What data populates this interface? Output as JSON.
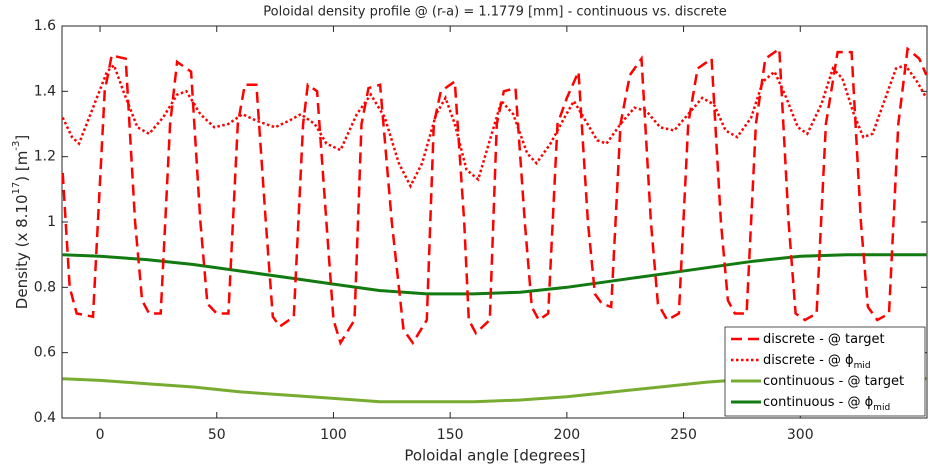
{
  "chart_data": {
    "type": "line",
    "title": "Poloidal density profile @ (r-a) = 1.1779 [mm] - continuous vs. discrete",
    "xlabel": "Poloidal angle [degrees]",
    "ylabel": [
      "Density (x 8.10",
      "17",
      ") [m",
      "-3",
      "]"
    ],
    "xlim": [
      -16.3,
      354.3
    ],
    "ylim": [
      0.4,
      1.6
    ],
    "xticks": [
      0,
      50,
      100,
      150,
      200,
      250,
      300
    ],
    "yticks": [
      0.4,
      0.6,
      0.8,
      1,
      1.2,
      1.4,
      1.6
    ],
    "grid": false,
    "legend": "lower right",
    "series": [
      {
        "name": "discrete - @ target",
        "color": "#ff0000",
        "dash": "dashed",
        "x": [
          -16,
          -13,
          -10,
          -3,
          2,
          5,
          11,
          15,
          18,
          21,
          26,
          30,
          33,
          39,
          43,
          46,
          50,
          55,
          59,
          62,
          67,
          71,
          74,
          77,
          83,
          87,
          89,
          93,
          97,
          100,
          103,
          109,
          112,
          115,
          120,
          125,
          130,
          134,
          140,
          143,
          146,
          152,
          156,
          158,
          161,
          167,
          170,
          173,
          178,
          182,
          185,
          188,
          192,
          196,
          200,
          205,
          209,
          212,
          215,
          219,
          223,
          227,
          232,
          236,
          239,
          243,
          248,
          252,
          256,
          262,
          266,
          269,
          272,
          277,
          281,
          285,
          291,
          295,
          298,
          302,
          307,
          311,
          316,
          322,
          326,
          329,
          333,
          338,
          342,
          346,
          351,
          354
        ],
        "values": [
          1.15,
          0.8,
          0.72,
          0.71,
          1.4,
          1.51,
          1.5,
          1.0,
          0.76,
          0.72,
          0.72,
          1.3,
          1.49,
          1.46,
          1.0,
          0.75,
          0.72,
          0.72,
          1.3,
          1.42,
          1.42,
          1.0,
          0.71,
          0.68,
          0.71,
          1.3,
          1.42,
          1.4,
          1.0,
          0.7,
          0.63,
          0.7,
          1.3,
          1.41,
          1.42,
          1.0,
          0.67,
          0.63,
          0.7,
          1.3,
          1.4,
          1.43,
          1.0,
          0.7,
          0.66,
          0.7,
          1.3,
          1.4,
          1.41,
          1.0,
          0.74,
          0.7,
          0.72,
          1.3,
          1.38,
          1.46,
          1.0,
          0.78,
          0.75,
          0.74,
          1.3,
          1.45,
          1.5,
          1.0,
          0.75,
          0.7,
          0.72,
          1.3,
          1.47,
          1.5,
          1.0,
          0.76,
          0.72,
          0.72,
          1.3,
          1.5,
          1.53,
          1.0,
          0.72,
          0.7,
          0.72,
          1.3,
          1.52,
          1.52,
          1.0,
          0.74,
          0.7,
          0.72,
          1.3,
          1.53,
          1.5,
          1.45
        ]
      },
      {
        "name": "discrete - @ ϕ",
        "name_sub": "mid",
        "color": "#ff0000",
        "dash": "dotted",
        "x": [
          -16,
          -12,
          -9,
          -3,
          3,
          6,
          10,
          16,
          21,
          27,
          33,
          37,
          43,
          49,
          55,
          61,
          67,
          75,
          81,
          86,
          92,
          97,
          103,
          110,
          116,
          122,
          128,
          133,
          138,
          144,
          148,
          152,
          157,
          162,
          167,
          172,
          177,
          183,
          187,
          193,
          199,
          203,
          208,
          213,
          217,
          223,
          229,
          234,
          240,
          246,
          252,
          258,
          263,
          268,
          273,
          279,
          284,
          289,
          294,
          299,
          303,
          309,
          314,
          318,
          323,
          327,
          331,
          336,
          341,
          345,
          350,
          354
        ],
        "values": [
          1.32,
          1.26,
          1.24,
          1.35,
          1.46,
          1.48,
          1.4,
          1.29,
          1.27,
          1.32,
          1.39,
          1.4,
          1.33,
          1.29,
          1.3,
          1.33,
          1.31,
          1.29,
          1.31,
          1.33,
          1.3,
          1.24,
          1.22,
          1.33,
          1.39,
          1.32,
          1.18,
          1.11,
          1.18,
          1.33,
          1.38,
          1.3,
          1.16,
          1.13,
          1.25,
          1.37,
          1.33,
          1.21,
          1.18,
          1.24,
          1.32,
          1.37,
          1.31,
          1.25,
          1.24,
          1.3,
          1.35,
          1.34,
          1.29,
          1.28,
          1.33,
          1.38,
          1.36,
          1.28,
          1.26,
          1.32,
          1.43,
          1.46,
          1.38,
          1.29,
          1.27,
          1.36,
          1.47,
          1.44,
          1.33,
          1.26,
          1.27,
          1.37,
          1.47,
          1.48,
          1.43,
          1.38
        ]
      },
      {
        "name": "continuous - @ target",
        "color": "#77ac30",
        "dash": "solid",
        "x": [
          -16,
          0,
          20,
          40,
          60,
          80,
          100,
          120,
          140,
          160,
          180,
          200,
          220,
          240,
          260,
          280,
          300,
          320,
          340,
          354
        ],
        "values": [
          0.52,
          0.515,
          0.505,
          0.495,
          0.48,
          0.47,
          0.46,
          0.45,
          0.45,
          0.45,
          0.455,
          0.465,
          0.48,
          0.495,
          0.51,
          0.52,
          0.525,
          0.525,
          0.52,
          0.52
        ]
      },
      {
        "name": "continuous - @ ϕ",
        "name_sub": "mid",
        "color": "#117a11",
        "dash": "solid",
        "x": [
          -16,
          0,
          20,
          40,
          60,
          80,
          100,
          120,
          140,
          160,
          180,
          200,
          220,
          240,
          260,
          280,
          300,
          320,
          340,
          354
        ],
        "values": [
          0.9,
          0.895,
          0.885,
          0.87,
          0.85,
          0.83,
          0.81,
          0.79,
          0.78,
          0.78,
          0.785,
          0.8,
          0.82,
          0.84,
          0.86,
          0.88,
          0.895,
          0.9,
          0.9,
          0.9
        ]
      }
    ]
  }
}
